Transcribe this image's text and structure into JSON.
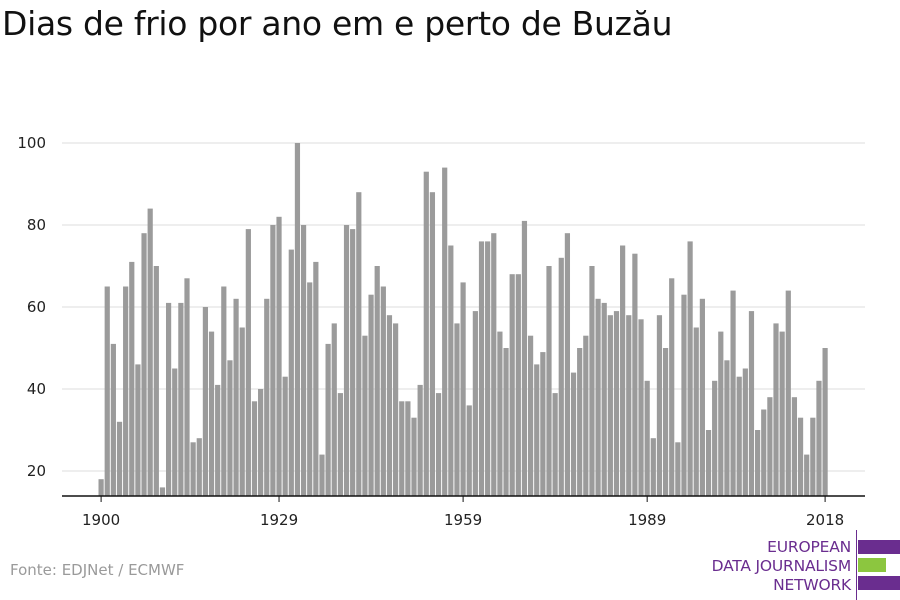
{
  "title": "Dias de frio por ano em e perto de Buzău",
  "source": "Fonte: EDJNet / ECMWF",
  "logo": {
    "lines": [
      "EUROPEAN",
      "DATA JOURNALISM",
      "NETWORK"
    ],
    "colors": {
      "purple": "#6a2d8f",
      "green": "#8cc63f"
    }
  },
  "colors": {
    "bar": "#9b9b9b",
    "grid": "#dddddd",
    "axis": "#111111"
  },
  "chart_data": {
    "type": "bar",
    "title": "Dias de frio por ano em e perto de Buzău",
    "xlabel": "",
    "ylabel": "",
    "x_ticks": [
      1900,
      1929,
      1959,
      1989,
      2018
    ],
    "y_ticks": [
      20,
      40,
      60,
      80,
      100
    ],
    "ylim": [
      13,
      102
    ],
    "xlim": [
      1899.5,
      2018.5
    ],
    "grid": "horizontal",
    "categories": [
      1900,
      1901,
      1902,
      1903,
      1904,
      1905,
      1906,
      1907,
      1908,
      1909,
      1910,
      1911,
      1912,
      1913,
      1914,
      1915,
      1916,
      1917,
      1918,
      1919,
      1920,
      1921,
      1922,
      1923,
      1924,
      1925,
      1926,
      1927,
      1928,
      1929,
      1930,
      1931,
      1932,
      1933,
      1934,
      1935,
      1936,
      1937,
      1938,
      1939,
      1940,
      1941,
      1942,
      1943,
      1944,
      1945,
      1946,
      1947,
      1948,
      1949,
      1950,
      1951,
      1952,
      1953,
      1954,
      1955,
      1956,
      1957,
      1958,
      1959,
      1960,
      1961,
      1962,
      1963,
      1964,
      1965,
      1966,
      1967,
      1968,
      1969,
      1970,
      1971,
      1972,
      1973,
      1974,
      1975,
      1976,
      1977,
      1978,
      1979,
      1980,
      1981,
      1982,
      1983,
      1984,
      1985,
      1986,
      1987,
      1988,
      1989,
      1990,
      1991,
      1992,
      1993,
      1994,
      1995,
      1996,
      1997,
      1998,
      1999,
      2000,
      2001,
      2002,
      2003,
      2004,
      2005,
      2006,
      2007,
      2008,
      2009,
      2010,
      2011,
      2012,
      2013,
      2014,
      2015,
      2016,
      2017,
      2018
    ],
    "values": [
      18,
      65,
      51,
      32,
      65,
      71,
      46,
      78,
      84,
      70,
      16,
      61,
      45,
      61,
      67,
      27,
      28,
      60,
      54,
      41,
      65,
      47,
      62,
      55,
      79,
      37,
      40,
      62,
      80,
      82,
      43,
      74,
      100,
      80,
      66,
      71,
      24,
      51,
      56,
      39,
      80,
      79,
      88,
      53,
      63,
      70,
      65,
      58,
      56,
      37,
      37,
      33,
      41,
      93,
      88,
      39,
      94,
      75,
      56,
      66,
      36,
      59,
      76,
      76,
      78,
      54,
      50,
      68,
      68,
      81,
      53,
      46,
      49,
      70,
      39,
      72,
      78,
      44,
      50,
      53,
      70,
      62,
      61,
      58,
      59,
      75,
      58,
      73,
      57,
      42,
      28,
      58,
      50,
      67,
      27,
      63,
      76,
      55,
      62,
      30,
      42,
      54,
      47,
      64,
      43,
      45,
      59,
      30,
      35,
      38,
      56,
      54,
      64,
      38,
      33,
      24,
      33,
      42,
      50
    ]
  }
}
